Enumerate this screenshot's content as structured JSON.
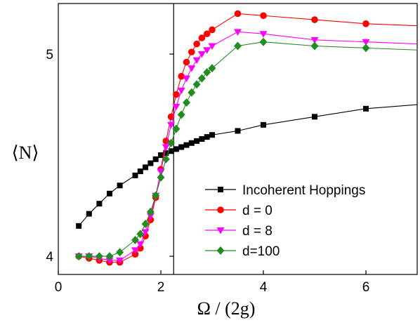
{
  "chart_data": {
    "type": "line",
    "xlabel": "Ω / (2g)",
    "ylabel": "⟨N⟩",
    "xlim": [
      0,
      7
    ],
    "ylim": [
      3.91,
      5.25
    ],
    "xticks": [
      0,
      2,
      4,
      6
    ],
    "xtick_labels": [
      "0",
      "2",
      "4",
      "6"
    ],
    "yticks": [
      4,
      5
    ],
    "ytick_labels": [
      "4",
      "5"
    ],
    "vertical_line_x": 2.25,
    "grid": false,
    "legend_position": "bottom-right",
    "series": [
      {
        "name": "Incoherent Hoppings",
        "color": "#000000",
        "marker": "square",
        "x": [
          0.4,
          0.6,
          0.8,
          1.0,
          1.2,
          1.5,
          1.6,
          1.7,
          1.8,
          1.9,
          2.0,
          2.1,
          2.2,
          2.3,
          2.4,
          2.5,
          2.6,
          2.7,
          2.8,
          2.9,
          3.0,
          3.5,
          4.0,
          5.0,
          6.0,
          7.0
        ],
        "y": [
          4.15,
          4.21,
          4.26,
          4.31,
          4.35,
          4.4,
          4.42,
          4.44,
          4.46,
          4.48,
          4.5,
          4.51,
          4.52,
          4.53,
          4.54,
          4.55,
          4.56,
          4.57,
          4.58,
          4.59,
          4.6,
          4.62,
          4.65,
          4.69,
          4.73,
          4.75
        ]
      },
      {
        "name": "d = 0",
        "color": "#ff0000",
        "marker": "circle",
        "x": [
          0.4,
          0.6,
          0.8,
          1.0,
          1.2,
          1.5,
          1.6,
          1.7,
          1.8,
          1.9,
          2.0,
          2.1,
          2.2,
          2.3,
          2.4,
          2.5,
          2.6,
          2.7,
          2.8,
          2.9,
          3.0,
          3.5,
          4.0,
          5.0,
          6.0,
          7.0
        ],
        "y": [
          4.0,
          3.99,
          3.98,
          3.97,
          3.97,
          4.01,
          4.04,
          4.1,
          4.18,
          4.29,
          4.43,
          4.57,
          4.69,
          4.8,
          4.89,
          4.96,
          5.01,
          5.05,
          5.08,
          5.1,
          5.12,
          5.2,
          5.19,
          5.17,
          5.15,
          5.14
        ]
      },
      {
        "name": "d = 8",
        "color": "#ff00ff",
        "marker": "triangle-down",
        "x": [
          0.4,
          0.6,
          0.8,
          1.0,
          1.2,
          1.5,
          1.6,
          1.7,
          1.8,
          1.9,
          2.0,
          2.1,
          2.2,
          2.3,
          2.4,
          2.5,
          2.6,
          2.7,
          2.8,
          2.9,
          3.0,
          3.5,
          4.0,
          5.0,
          6.0,
          7.0
        ],
        "y": [
          4.0,
          4.0,
          3.99,
          3.98,
          3.98,
          4.03,
          4.06,
          4.12,
          4.2,
          4.3,
          4.42,
          4.54,
          4.65,
          4.74,
          4.82,
          4.88,
          4.93,
          4.97,
          5.0,
          5.02,
          5.04,
          5.11,
          5.1,
          5.07,
          5.06,
          5.05
        ]
      },
      {
        "name": "d=100",
        "color": "#228b22",
        "marker": "diamond",
        "x": [
          0.4,
          0.6,
          0.8,
          1.0,
          1.2,
          1.5,
          1.6,
          1.7,
          1.8,
          1.9,
          2.0,
          2.1,
          2.2,
          2.3,
          2.4,
          2.5,
          2.6,
          2.7,
          2.8,
          2.9,
          3.0,
          3.5,
          4.0,
          5.0,
          6.0,
          7.0
        ],
        "y": [
          4.0,
          4.0,
          4.0,
          4.0,
          4.02,
          4.08,
          4.11,
          4.16,
          4.22,
          4.3,
          4.39,
          4.48,
          4.56,
          4.63,
          4.7,
          4.76,
          4.81,
          4.85,
          4.88,
          4.91,
          4.93,
          5.04,
          5.06,
          5.04,
          5.03,
          5.02
        ]
      }
    ]
  }
}
